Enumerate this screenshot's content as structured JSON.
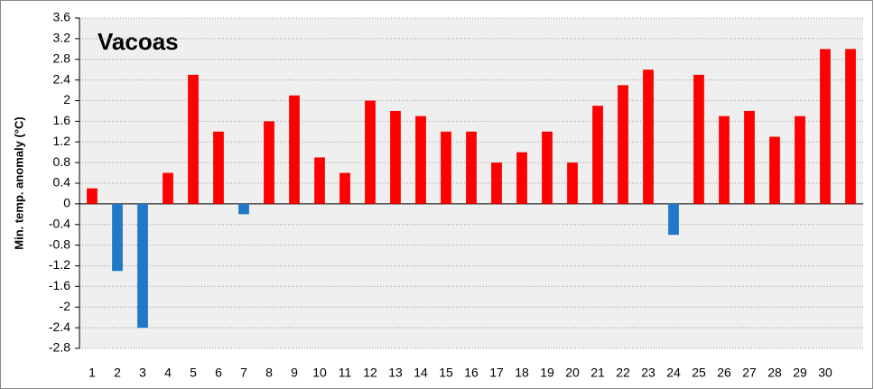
{
  "chart_data": {
    "type": "bar",
    "annotation": "Vacoas",
    "y_label": "Min. temp. anomaly (°C)",
    "categories": [
      "1",
      "2",
      "3",
      "4",
      "5",
      "6",
      "7",
      "8",
      "9",
      "10",
      "11",
      "12",
      "13",
      "14",
      "15",
      "16",
      "17",
      "18",
      "19",
      "20",
      "21",
      "22",
      "23",
      "24",
      "25",
      "26",
      "27",
      "28",
      "29",
      "30",
      null
    ],
    "values": [
      0.3,
      -1.3,
      -2.4,
      0.6,
      2.5,
      1.4,
      -0.2,
      1.6,
      2.1,
      0.9,
      0.6,
      2.0,
      1.8,
      1.7,
      1.4,
      1.4,
      0.8,
      1.0,
      1.4,
      0.8,
      1.9,
      2.3,
      2.6,
      -0.6,
      2.5,
      1.7,
      1.8,
      1.3,
      1.7,
      3.0,
      3.0
    ],
    "color": "#ff0000",
    "negative_color": "#1f78c8",
    "ylim": [
      -2.8,
      3.6
    ],
    "yticks": [
      3.6,
      3.2,
      2.8,
      2.4,
      2,
      1.6,
      1.2,
      0.8,
      0.4,
      0,
      -0.4,
      -0.8,
      -1.2,
      -1.6,
      -2,
      -2.4,
      -2.8
    ],
    "grid": true
  }
}
